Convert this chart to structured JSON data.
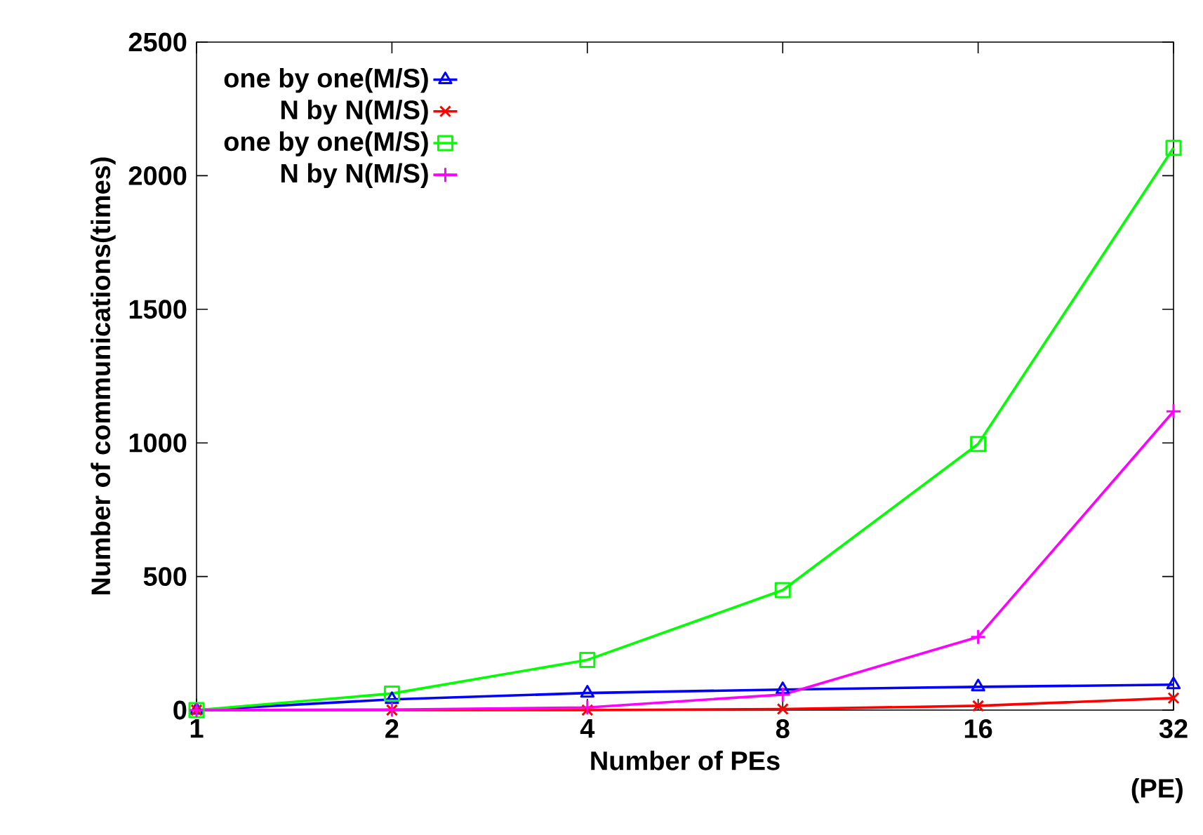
{
  "chart_data": {
    "type": "line",
    "xlabel": "Number of PEs",
    "ylabel": "Number of communications(times)",
    "categories": [
      "1",
      "2",
      "4",
      "8",
      "16",
      "32"
    ],
    "series": [
      {
        "name": "one by one(M/S)",
        "color": "#0000ff",
        "marker": "triangle",
        "values": [
          0,
          40,
          64,
          77,
          87,
          95
        ]
      },
      {
        "name": "N by N(M/S)",
        "color": "#ff0000",
        "marker": "cross",
        "values": [
          0,
          0,
          0,
          4,
          16,
          45
        ]
      },
      {
        "name": "one by one(M/S)",
        "color": "#00ff00",
        "marker": "square",
        "values": [
          0,
          62,
          188,
          449,
          996,
          2104
        ]
      },
      {
        "name": "N by N(M/S)",
        "color": "#ff00ff",
        "marker": "plus",
        "values": [
          0,
          2,
          10,
          58,
          274,
          1118
        ]
      }
    ],
    "ylim": [
      0,
      2500
    ],
    "yticks": [
      0,
      500,
      1000,
      1500,
      2000,
      2500
    ],
    "legend": "top left",
    "grid": false,
    "annotations": [
      "(PE)"
    ]
  }
}
